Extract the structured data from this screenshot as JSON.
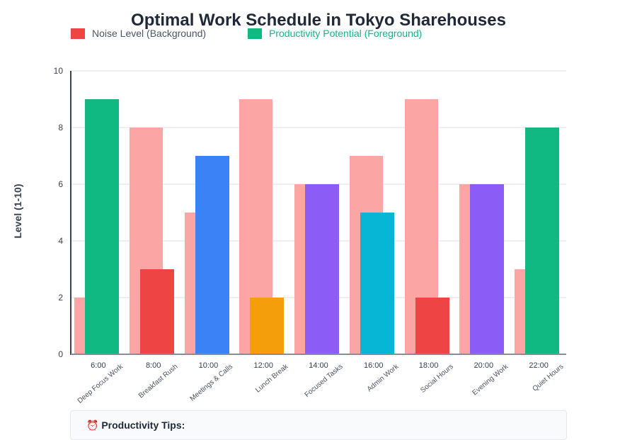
{
  "chart_data": {
    "type": "bar",
    "title": "Optimal Work Schedule in Tokyo Sharehouses",
    "xlabel": "",
    "ylabel": "Level (1-10)",
    "ylim": [
      0,
      10
    ],
    "yticks": [
      0,
      2,
      4,
      6,
      8,
      10
    ],
    "grid": true,
    "legend_position": "top-left",
    "categories": [
      "6:00",
      "8:00",
      "10:00",
      "12:00",
      "14:00",
      "16:00",
      "18:00",
      "20:00",
      "22:00"
    ],
    "category_labels": [
      "Deep Focus Work",
      "Breakfast Rush",
      "Meetings & Calls",
      "Lunch Break",
      "Focused Tasks",
      "Admin Work",
      "Social Hours",
      "Evening Work",
      "Quiet Hours"
    ],
    "series": [
      {
        "name": "Noise Level (Background)",
        "color": "#fca5a5",
        "legend_color": "#ef4444",
        "values": [
          2,
          8,
          5,
          9,
          6,
          7,
          9,
          6,
          3
        ]
      },
      {
        "name": "Productivity Potential (Foreground)",
        "legend_color": "#10b981",
        "values": [
          9,
          3,
          7,
          2,
          6,
          5,
          2,
          6,
          8
        ],
        "colors": [
          "#10b981",
          "#ef4444",
          "#3b82f6",
          "#f59e0b",
          "#8b5cf6",
          "#06b6d4",
          "#ef4444",
          "#8b5cf6",
          "#10b981"
        ]
      }
    ]
  },
  "legend": {
    "noise": {
      "label": "Noise Level (Background)",
      "color": "#ef4444"
    },
    "productivity": {
      "label": "Productivity Potential (Foreground)",
      "color": "#10b981"
    }
  },
  "yticks": [
    "0",
    "2",
    "4",
    "6",
    "8",
    "10"
  ],
  "tips": {
    "icon": "⏰",
    "title": "Productivity Tips:"
  }
}
